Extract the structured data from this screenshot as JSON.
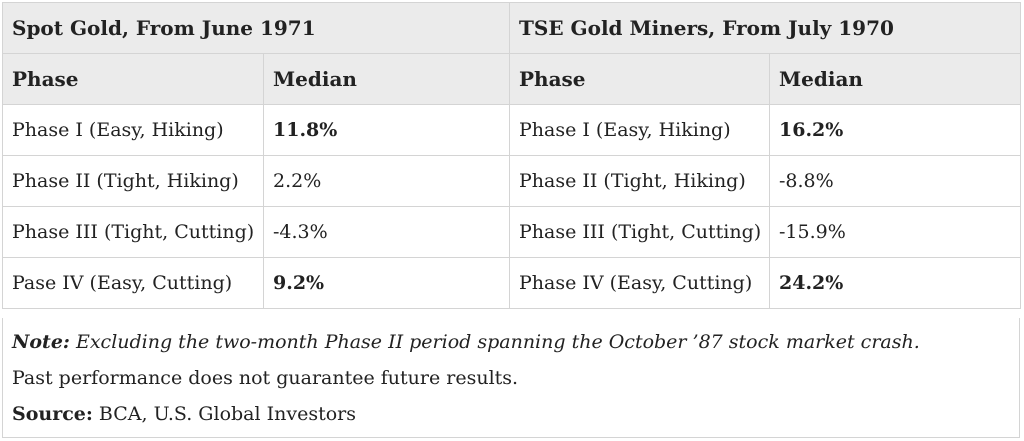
{
  "groups": {
    "spot_gold": "Spot Gold, From June 1971",
    "tse_miners": "TSE Gold Miners, From July 1970"
  },
  "columns": {
    "phase": "Phase",
    "median": "Median"
  },
  "rows": [
    {
      "gold_phase": "Phase I (Easy, Hiking)",
      "gold_median": "11.8%",
      "miners_phase": "Phase I (Easy, Hiking)",
      "miners_median": "16.2%"
    },
    {
      "gold_phase": "Phase II (Tight, Hiking)",
      "gold_median": "2.2%",
      "miners_phase": "Phase II (Tight, Hiking)",
      "miners_median": "-8.8%"
    },
    {
      "gold_phase": "Phase III (Tight, Cutting)",
      "gold_median": "-4.3%",
      "miners_phase": "Phase III (Tight, Cutting)",
      "miners_median": "-15.9%"
    },
    {
      "gold_phase": "Pase IV (Easy, Cutting)",
      "gold_median": "9.2%",
      "miners_phase": "Phase IV (Easy, Cutting)",
      "miners_median": "24.2%"
    }
  ],
  "notes": {
    "note_label": "Note:",
    "note_text": " Excluding the two-month Phase II period spanning the October ’87 stock market crash.",
    "disclaimer": "Past performance does not guarantee future results.",
    "source_label": "Source:",
    "source_text": " BCA, U.S. Global Investors"
  }
}
